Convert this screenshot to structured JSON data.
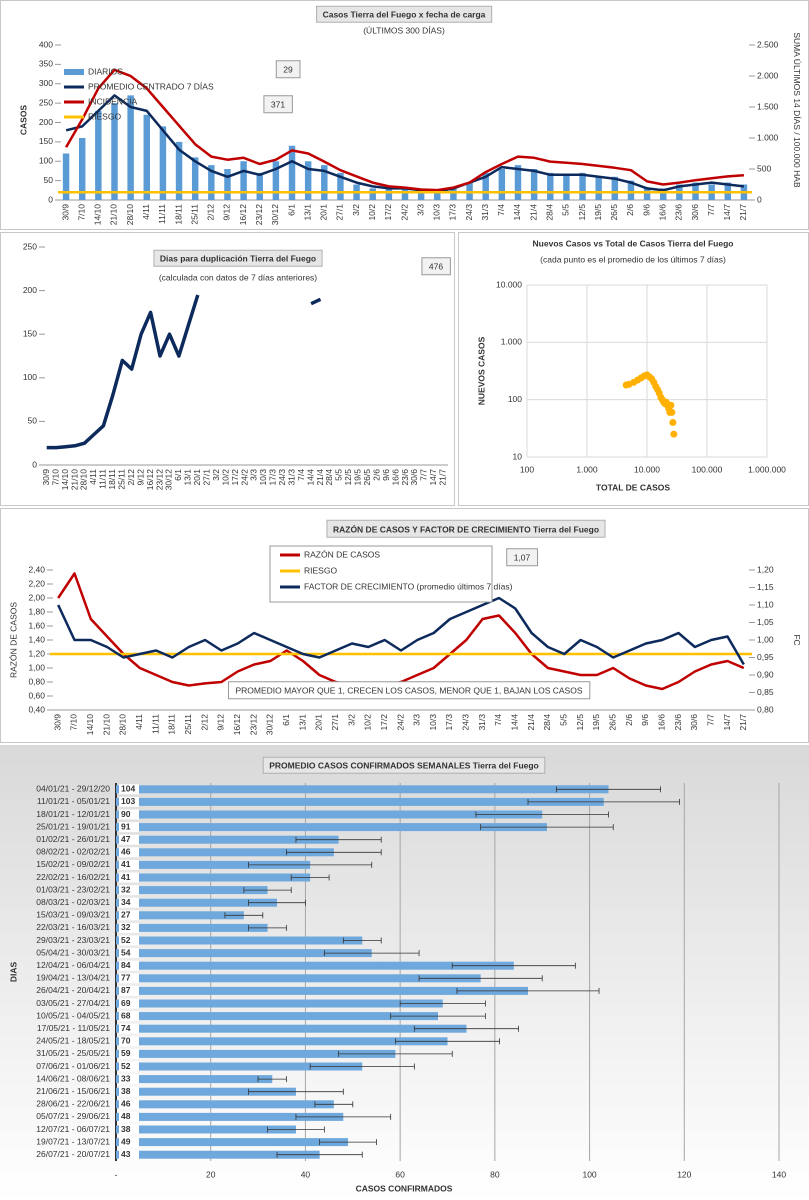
{
  "chart_data": [
    {
      "type": "combo",
      "title": "Casos Tierra del Fuego x fecha de carga",
      "subtitle": "(ÚLTIMOS 300 DÍAS)",
      "ylabel": "CASOS",
      "y2label": "SUMA ÚLTIMOS 14 DÍAS / 100.000 HAB",
      "annotations": [
        "29",
        "371"
      ],
      "grid": false,
      "categories": [
        "30/9",
        "7/10",
        "14/10",
        "21/10",
        "28/10",
        "4/11",
        "11/11",
        "18/11",
        "25/11",
        "2/12",
        "9/12",
        "16/12",
        "23/12",
        "30/12",
        "6/1",
        "13/1",
        "20/1",
        "27/1",
        "3/2",
        "10/2",
        "17/2",
        "24/2",
        "3/3",
        "10/3",
        "17/3",
        "24/3",
        "31/3",
        "7/4",
        "14/4",
        "21/4",
        "28/4",
        "5/5",
        "12/5",
        "19/5",
        "26/5",
        "2/6",
        "9/6",
        "16/6",
        "23/6",
        "30/6",
        "7/7",
        "14/7",
        "21/7"
      ],
      "series": [
        {
          "name": "DIARIOS",
          "color": "#5b9bd5",
          "kind": "bar",
          "values": [
            120,
            160,
            230,
            250,
            270,
            220,
            190,
            150,
            110,
            90,
            80,
            100,
            70,
            100,
            140,
            100,
            90,
            70,
            40,
            30,
            30,
            30,
            20,
            25,
            30,
            45,
            70,
            80,
            90,
            80,
            70,
            65,
            70,
            60,
            60,
            50,
            30,
            30,
            40,
            45,
            40,
            45,
            40
          ]
        },
        {
          "name": "PROMEDIO CENTRADO 7 DÍAS",
          "color": "#0d2a5c",
          "kind": "line",
          "values": [
            180,
            190,
            230,
            270,
            240,
            230,
            180,
            130,
            100,
            75,
            60,
            75,
            65,
            80,
            100,
            80,
            75,
            60,
            45,
            35,
            30,
            30,
            25,
            22,
            30,
            45,
            60,
            85,
            80,
            75,
            65,
            65,
            65,
            60,
            55,
            45,
            30,
            25,
            35,
            40,
            45,
            40,
            35
          ]
        },
        {
          "name": "INCIDENCIA",
          "color": "#c00000",
          "kind": "line",
          "axis": "y2",
          "values": [
            850,
            1300,
            1800,
            2100,
            2000,
            1800,
            1500,
            1200,
            900,
            700,
            650,
            680,
            580,
            650,
            800,
            750,
            620,
            480,
            380,
            280,
            220,
            200,
            170,
            160,
            200,
            280,
            450,
            580,
            700,
            680,
            620,
            600,
            580,
            550,
            520,
            480,
            300,
            250,
            280,
            320,
            350,
            380,
            400
          ]
        },
        {
          "name": "RIESGO",
          "color": "#ffc000",
          "kind": "level",
          "level": 20
        }
      ],
      "ylim": [
        0,
        400
      ],
      "yticks": [
        0,
        50,
        100,
        150,
        200,
        250,
        300,
        350,
        400
      ],
      "y2lim": [
        0,
        2500
      ],
      "y2ticks": [
        0,
        500,
        {
          "value": 1000,
          "label": "1.000"
        },
        {
          "value": 1500,
          "label": "1.500"
        },
        {
          "value": 2000,
          "label": "2.000"
        },
        {
          "value": 2500,
          "label": "2.500"
        }
      ]
    },
    {
      "type": "line",
      "title": "Dias para duplicación Tierra del Fuego",
      "subtitle": "(calculada con datos de 7 días anteriores)",
      "annotations": [
        "476"
      ],
      "grid": false,
      "color": "#0d2a5c",
      "categories": [
        "30/9",
        "7/10",
        "14/10",
        "21/10",
        "28/10",
        "4/11",
        "11/11",
        "18/11",
        "25/11",
        "2/12",
        "9/12",
        "16/12",
        "23/12",
        "30/12",
        "6/1",
        "13/1",
        "20/1",
        "27/1",
        "3/2",
        "10/2",
        "17/2",
        "24/2",
        "3/3",
        "10/3",
        "17/3",
        "24/3",
        "31/3",
        "7/4",
        "14/4",
        "21/4",
        "28/4",
        "5/5",
        "12/5",
        "19/5",
        "26/5",
        "2/6",
        "9/6",
        "16/6",
        "23/6",
        "30/6",
        "7/7",
        "14/7",
        "21/7"
      ],
      "values": [
        20,
        20,
        21,
        22,
        25,
        35,
        45,
        80,
        120,
        110,
        150,
        175,
        125,
        150,
        125,
        160,
        195,
        null,
        null,
        null,
        null,
        null,
        null,
        null,
        null,
        null,
        null,
        null,
        185,
        190,
        null,
        null,
        null,
        null,
        null,
        null,
        null,
        null,
        null,
        null,
        null,
        null,
        null
      ],
      "ylim": [
        0,
        250
      ],
      "yticks": [
        0,
        50,
        100,
        150,
        200,
        250
      ]
    },
    {
      "type": "scatter",
      "title": "Nuevos Casos vs Total de Casos Tierra del Fuego",
      "subtitle": "(cada punto es el promedio de los últimos 7 días)",
      "xlabel": "TOTAL DE CASOS",
      "ylabel": "NUEVOS CASOS",
      "xlog": true,
      "ylog": true,
      "grid": true,
      "color": "#ffb000",
      "x": [
        4500,
        5000,
        6000,
        7000,
        8000,
        9000,
        10000,
        11000,
        12000,
        13000,
        14000,
        15000,
        16000,
        17000,
        18000,
        19000,
        20000,
        21000,
        22000,
        23000,
        24000,
        25000,
        26000,
        27000,
        28000
      ],
      "values": [
        180,
        185,
        200,
        220,
        240,
        260,
        270,
        250,
        230,
        200,
        170,
        150,
        130,
        110,
        100,
        90,
        85,
        90,
        80,
        70,
        60,
        80,
        60,
        40,
        25
      ],
      "xlim": [
        100,
        1000000
      ],
      "xticks": [
        100,
        {
          "value": 1000,
          "label": "1.000"
        },
        {
          "value": 10000,
          "label": "10.000"
        },
        {
          "value": 100000,
          "label": "100.000"
        },
        {
          "value": 1000000,
          "label": "1.000.000"
        }
      ],
      "ylim": [
        10,
        10000
      ],
      "yticks": [
        10,
        100,
        {
          "value": 1000,
          "label": "1.000"
        },
        {
          "value": 10000,
          "label": "10.000"
        }
      ]
    },
    {
      "type": "line",
      "title": "RAZÓN DE CASOS Y FACTOR DE CRECIMIENTO Tierra del Fuego",
      "ylabel": "RAZÓN DE CASOS",
      "y2label": "FC",
      "annotations": [
        "1,07",
        "PROMEDIO MAYOR QUE 1, CRECEN LOS CASOS, MENOR QUE 1, BAJAN LOS CASOS"
      ],
      "grid": false,
      "categories": [
        "30/9",
        "7/10",
        "14/10",
        "21/10",
        "28/10",
        "4/11",
        "11/11",
        "18/11",
        "25/11",
        "2/12",
        "9/12",
        "16/12",
        "23/12",
        "30/12",
        "6/1",
        "13/1",
        "20/1",
        "27/1",
        "3/2",
        "10/2",
        "17/2",
        "24/2",
        "3/3",
        "10/3",
        "17/3",
        "24/3",
        "31/3",
        "7/4",
        "14/4",
        "21/4",
        "28/4",
        "5/5",
        "12/5",
        "19/5",
        "26/5",
        "2/6",
        "9/6",
        "16/6",
        "23/6",
        "30/6",
        "7/7",
        "14/7",
        "21/7"
      ],
      "series": [
        {
          "name": "RAZÓN DE CASOS",
          "color": "#c00000",
          "kind": "line",
          "values": [
            2.0,
            2.35,
            1.7,
            1.45,
            1.2,
            1.0,
            0.9,
            0.8,
            0.75,
            0.78,
            0.8,
            0.95,
            1.05,
            1.1,
            1.25,
            1.1,
            0.9,
            0.8,
            0.75,
            0.7,
            0.75,
            0.8,
            0.9,
            1.0,
            1.2,
            1.4,
            1.7,
            1.75,
            1.5,
            1.2,
            1.0,
            0.95,
            0.9,
            0.9,
            1.0,
            0.85,
            0.75,
            0.7,
            0.8,
            0.95,
            1.05,
            1.1,
            1.0
          ]
        },
        {
          "name": "RIESGO",
          "color": "#ffc000",
          "kind": "level",
          "level": 1.2
        },
        {
          "name": "FACTOR DE CRECIMIENTO (promedio últimos 7 días)",
          "color": "#0d2a5c",
          "kind": "line",
          "axis": "y2",
          "values": [
            1.1,
            1.0,
            1.0,
            0.98,
            0.95,
            0.96,
            0.97,
            0.95,
            0.98,
            1.0,
            0.97,
            0.99,
            1.02,
            1.0,
            0.98,
            0.96,
            0.95,
            0.97,
            0.99,
            0.98,
            1.0,
            0.97,
            1.0,
            1.02,
            1.06,
            1.08,
            1.1,
            1.12,
            1.09,
            1.02,
            0.98,
            0.96,
            1.0,
            0.98,
            0.95,
            0.97,
            0.99,
            1.0,
            1.02,
            0.98,
            1.0,
            1.01,
            0.93
          ]
        }
      ],
      "ylim": [
        0.4,
        2.4
      ],
      "yticks": [
        {
          "value": 0.4,
          "label": "0,40"
        },
        {
          "value": 0.6,
          "label": "0,60"
        },
        {
          "value": 0.8,
          "label": "0,80"
        },
        {
          "value": 1.0,
          "label": "1,00"
        },
        {
          "value": 1.2,
          "label": "1,20"
        },
        {
          "value": 1.4,
          "label": "1,40"
        },
        {
          "value": 1.6,
          "label": "1,60"
        },
        {
          "value": 1.8,
          "label": "1,80"
        },
        {
          "value": 2.0,
          "label": "2,00"
        },
        {
          "value": 2.2,
          "label": "2,20"
        },
        {
          "value": 2.4,
          "label": "2,40"
        }
      ],
      "y2lim": [
        0.8,
        1.2
      ],
      "y2ticks": [
        {
          "value": 0.8,
          "label": "0,80"
        },
        {
          "value": 0.85,
          "label": "0,85"
        },
        {
          "value": 0.9,
          "label": "0,90"
        },
        {
          "value": 0.95,
          "label": "0,95"
        },
        {
          "value": 1.0,
          "label": "1,00"
        },
        {
          "value": 1.05,
          "label": "1,05"
        },
        {
          "value": 1.1,
          "label": "1,10"
        },
        {
          "value": 1.15,
          "label": "1,15"
        },
        {
          "value": 1.2,
          "label": "1,20"
        }
      ]
    },
    {
      "type": "bar",
      "title": "PROMEDIO CASOS CONFIRMADOS SEMANALES Tierra del Fuego",
      "xlabel": "CASOS CONFIRMADOS",
      "ylabel": "DIAS",
      "grid": true,
      "color": "#6fa8dc",
      "categories": [
        "04/01/21 - 29/12/20",
        "11/01/21 - 05/01/21",
        "18/01/21 - 12/01/21",
        "25/01/21 - 19/01/21",
        "01/02/21 - 26/01/21",
        "08/02/21 - 02/02/21",
        "15/02/21 - 09/02/21",
        "22/02/21 - 16/02/21",
        "01/03/21 - 23/02/21",
        "08/03/21 - 02/03/21",
        "15/03/21 - 09/03/21",
        "22/03/21 - 16/03/21",
        "29/03/21 - 23/03/21",
        "05/04/21 - 30/03/21",
        "12/04/21 - 06/04/21",
        "19/04/21 - 13/04/21",
        "26/04/21 - 20/04/21",
        "03/05/21 - 27/04/21",
        "10/05/21 - 04/05/21",
        "17/05/21 - 11/05/21",
        "24/05/21 - 18/05/21",
        "31/05/21 - 25/05/21",
        "07/06/21 - 01/06/21",
        "14/06/21 - 08/06/21",
        "21/06/21 - 15/06/21",
        "28/06/21 - 22/06/21",
        "05/07/21 - 29/06/21",
        "12/07/21 - 06/07/21",
        "19/07/21 - 13/07/21",
        "26/07/21 - 20/07/21"
      ],
      "values": [
        104,
        103,
        90,
        91,
        47,
        46,
        41,
        41,
        32,
        34,
        27,
        32,
        52,
        54,
        84,
        77,
        87,
        69,
        68,
        74,
        70,
        59,
        52,
        33,
        38,
        46,
        48,
        38,
        49,
        43
      ],
      "errors": [
        11,
        16,
        14,
        14,
        9,
        10,
        13,
        4,
        5,
        6,
        4,
        4,
        4,
        10,
        13,
        13,
        15,
        9,
        10,
        11,
        11,
        12,
        11,
        3,
        10,
        4,
        10,
        6,
        6,
        9
      ],
      "xlim": [
        0,
        140
      ],
      "xticks": [
        {
          "value": 0,
          "label": "-"
        },
        20,
        40,
        60,
        80,
        100,
        120,
        140
      ]
    }
  ]
}
